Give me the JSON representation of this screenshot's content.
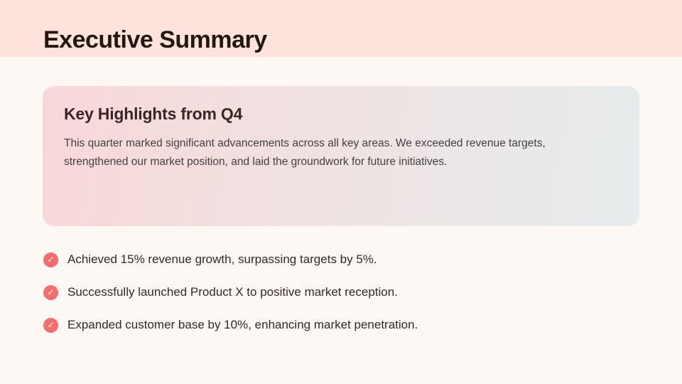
{
  "slide": {
    "title": "Executive Summary"
  },
  "highlight_card": {
    "title": "Key Highlights from Q4",
    "body": "This quarter marked significant advancements across all key areas. We exceeded revenue targets, strengthened our market position, and laid the groundwork for future initiatives."
  },
  "bullets": [
    {
      "icon": "check-icon",
      "glyph": "✓",
      "text": "Achieved 15% revenue growth, surpassing targets by 5%."
    },
    {
      "icon": "check-icon",
      "glyph": "✓",
      "text": "Successfully launched Product X to positive market reception."
    },
    {
      "icon": "check-icon",
      "glyph": "✓",
      "text": "Expanded customer base by 10%, enhancing market penetration."
    }
  ],
  "colors": {
    "header_band": "#fde3dc",
    "page_background": "#fdf8f3",
    "title_text": "#241712",
    "card_gradient_start": "#f9d7d8",
    "card_gradient_end": "#e7eced",
    "card_title_text": "#3a2723",
    "card_body_text": "#454040",
    "bullet_text": "#332a28",
    "check_circle": "#f66d6d",
    "check_mark": "#ffffff"
  }
}
